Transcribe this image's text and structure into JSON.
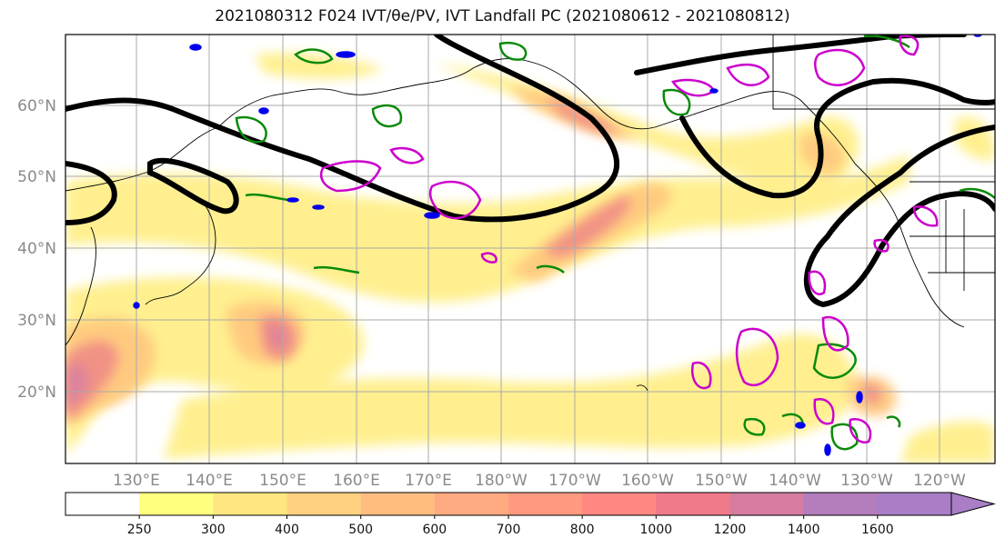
{
  "title": "2021080312 F024 IVT/θe/PV, IVT Landfall PC (2021080612 - 2021080812)",
  "lat_labels": [
    "60°N",
    "50°N",
    "40°N",
    "30°N",
    "20°N"
  ],
  "lon_labels": [
    "130°E",
    "140°E",
    "150°E",
    "160°E",
    "170°E",
    "180°W",
    "170°W",
    "160°W",
    "150°W",
    "140°W",
    "130°W",
    "120°W"
  ],
  "colorbar": {
    "ticks": [
      "250",
      "300",
      "400",
      "500",
      "600",
      "700",
      "800",
      "1000",
      "1200",
      "1400",
      "1600"
    ],
    "colors": [
      "#ffffff",
      "#ffff80",
      "#ffe680",
      "#ffd180",
      "#ffbd80",
      "#ffaa80",
      "#ff9980",
      "#ff8880",
      "#f07a8a",
      "#d57ca0",
      "#b47dbb",
      "#a97ec6"
    ],
    "extend": "max"
  },
  "colors": {
    "ivt_low": "#ffef8a",
    "ivt_mid": "#ffc97f",
    "ivt_high": "#f08c86",
    "ivt_max": "#d77fa3",
    "theta_e": "#000000",
    "pv_contour_green": "#0a8a0a",
    "pv_contour_magenta": "#cc00cc",
    "pv_contour_blue": "#0000ee",
    "grid": "#aaaaaa"
  }
}
